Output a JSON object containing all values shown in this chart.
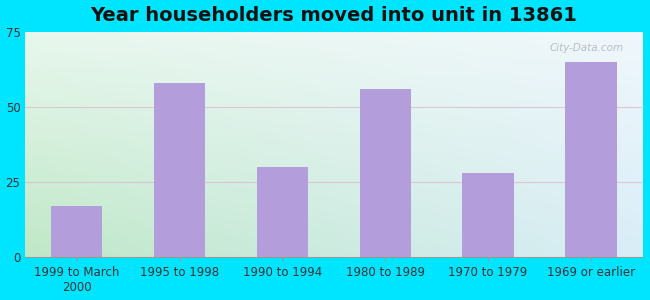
{
  "title": "Year householders moved into unit in 13861",
  "categories": [
    "1999 to March\n2000",
    "1995 to 1998",
    "1990 to 1994",
    "1980 to 1989",
    "1970 to 1979",
    "1969 or earlier"
  ],
  "values": [
    17,
    58,
    30,
    56,
    28,
    65
  ],
  "bar_color": "#b39ddb",
  "ylim": [
    0,
    75
  ],
  "yticks": [
    0,
    25,
    50,
    75
  ],
  "background_outer": "#00e5ff",
  "bg_colors": [
    "#c5e8cc",
    "#daeee0",
    "#e8f3ef",
    "#eef5f8",
    "#f2f7fa",
    "#f8fbfd"
  ],
  "title_fontsize": 14,
  "tick_fontsize": 8.5,
  "watermark": "City-Data.com",
  "grid_color": "#ddbbcc",
  "figsize": [
    6.5,
    3.0
  ],
  "dpi": 100
}
